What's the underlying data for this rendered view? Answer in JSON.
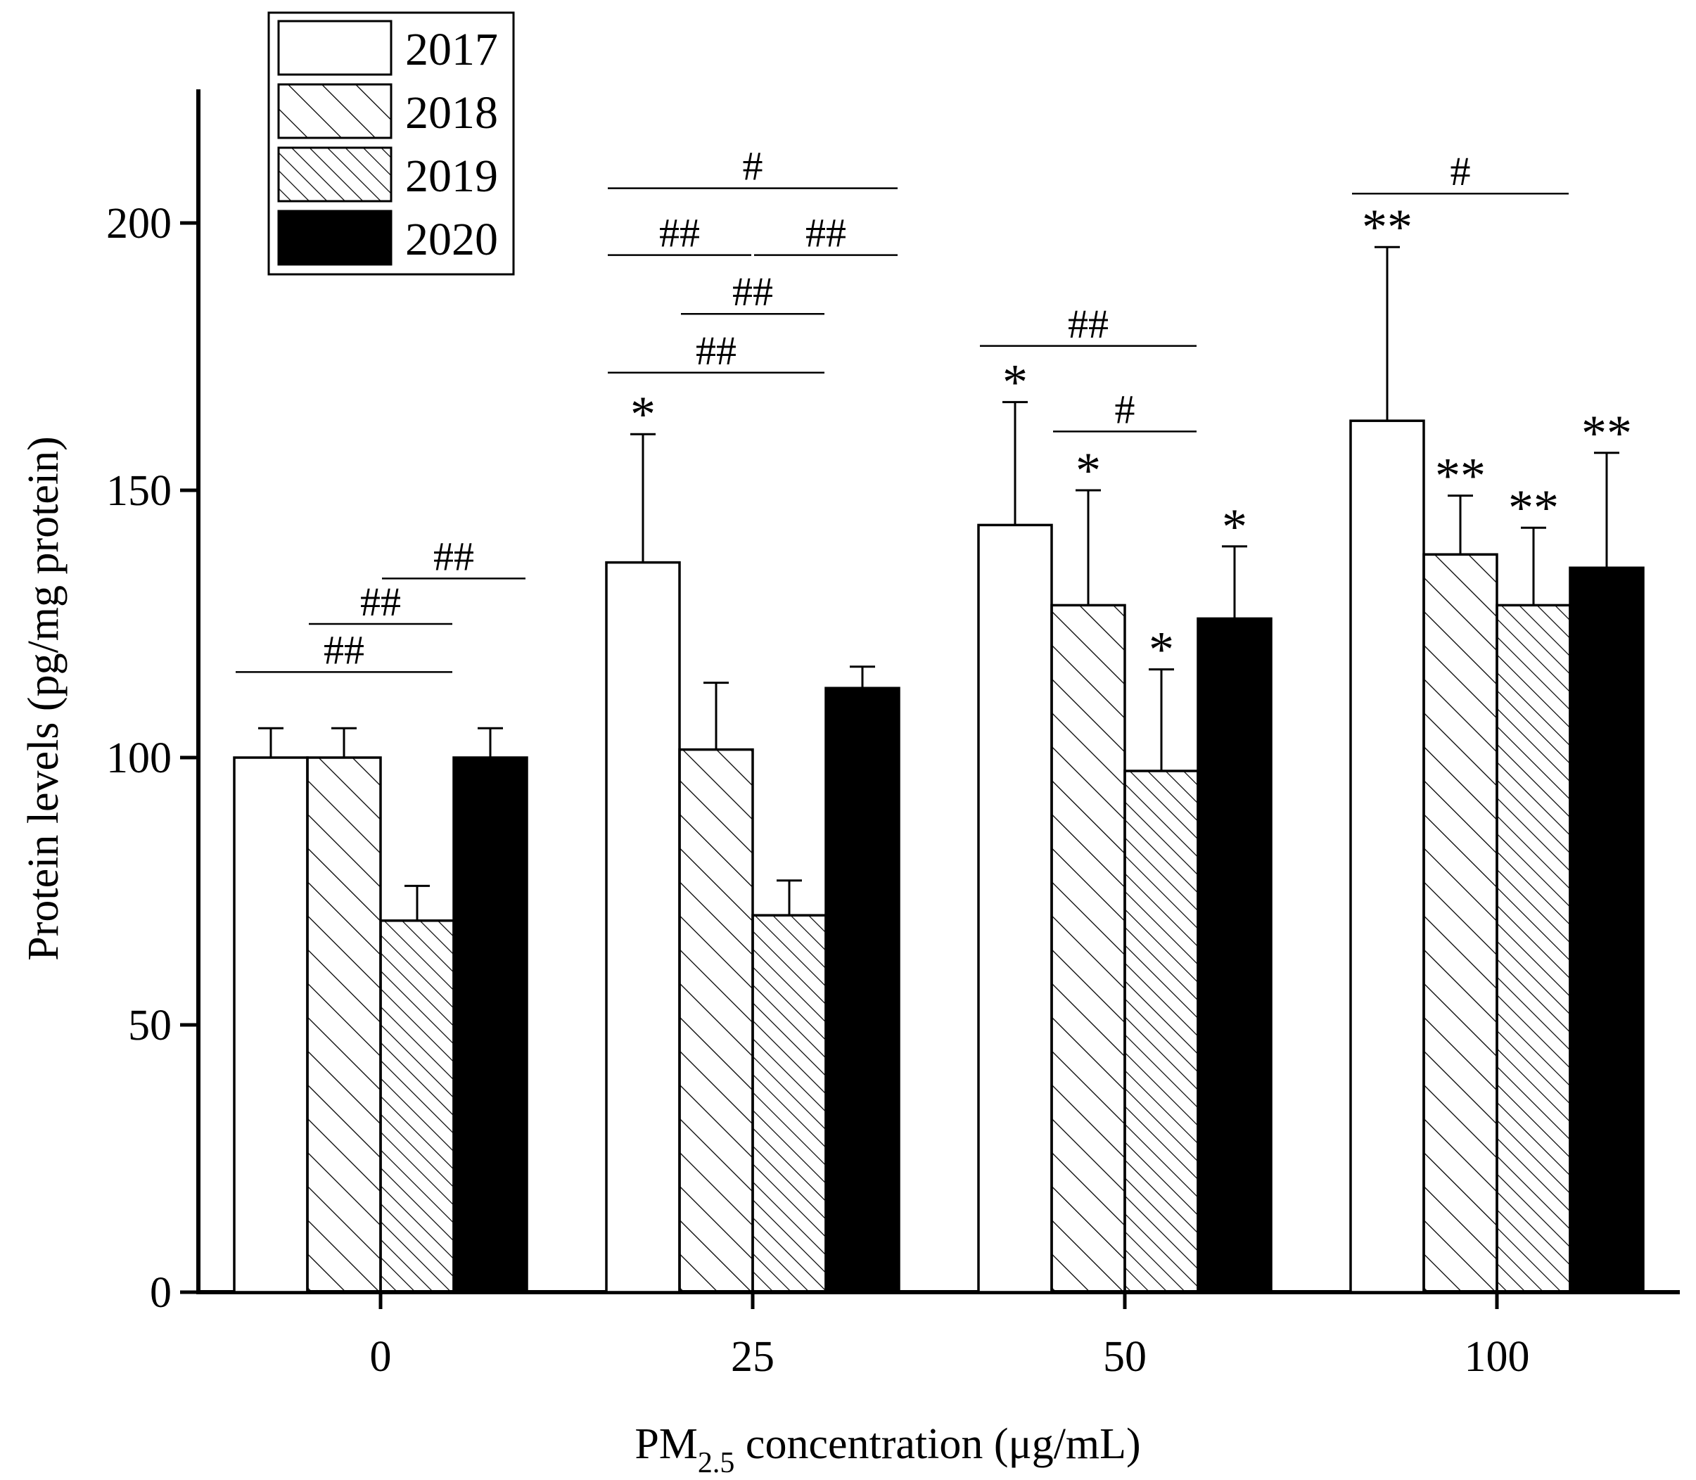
{
  "chart_data": {
    "type": "bar",
    "xlabel": {
      "main": "PM",
      "sub": "2.5",
      "rest": " concentration (μg/mL)"
    },
    "ylabel": "Protein levels (pg/mg protein)",
    "ylim": [
      0,
      225
    ],
    "yticks": [
      0,
      50,
      100,
      150,
      200
    ],
    "grid": false,
    "legend_position": "top-left",
    "categories": [
      "0",
      "25",
      "50",
      "100"
    ],
    "series": [
      {
        "name": "2017",
        "pattern": "open",
        "values": [
          100,
          136.5,
          143.5,
          163.0
        ],
        "errors": [
          5.5,
          24.0,
          23.0,
          32.5
        ],
        "stars": [
          "",
          "*",
          "*",
          "**"
        ]
      },
      {
        "name": "2018",
        "pattern": "hatch-sparse",
        "values": [
          100,
          101.5,
          128.5,
          138.0
        ],
        "errors": [
          5.5,
          12.5,
          21.5,
          11.0
        ],
        "stars": [
          "",
          "",
          "*",
          "**"
        ]
      },
      {
        "name": "2019",
        "pattern": "hatch-dense",
        "values": [
          69.5,
          70.5,
          97.5,
          128.5
        ],
        "errors": [
          6.5,
          6.5,
          19.0,
          14.5
        ],
        "stars": [
          "",
          "",
          "*",
          "**"
        ]
      },
      {
        "name": "2020",
        "pattern": "solid",
        "values": [
          100,
          113.0,
          126.0,
          135.5
        ],
        "errors": [
          5.5,
          4.0,
          13.5,
          21.5
        ],
        "stars": [
          "",
          "",
          "*",
          "**"
        ]
      }
    ],
    "colors": {
      "axis": "#000000",
      "bar_fill": "#ffffff",
      "solid_fill": "#000000",
      "hatch": "#000000"
    },
    "significance": [
      {
        "group": 0,
        "from_series": 0,
        "to_series": 2,
        "y": 116,
        "label": "##"
      },
      {
        "group": 0,
        "from_series": 1,
        "to_series": 2,
        "y": 125,
        "label": "##"
      },
      {
        "group": 0,
        "from_series": 2,
        "to_series": 3,
        "y": 133.5,
        "label": "##"
      },
      {
        "group": 1,
        "from_series": 0,
        "to_series": 2,
        "y": 172,
        "label": "##"
      },
      {
        "group": 1,
        "from_series": 1,
        "to_series": 2,
        "y": 183,
        "label": "##"
      },
      {
        "group": 1,
        "from_series": 0,
        "to_series": 1,
        "y": 194,
        "label": "##"
      },
      {
        "group": 1,
        "from_series": 2,
        "to_series": 3,
        "y": 194,
        "label": "##"
      },
      {
        "group": 1,
        "from_series": 0,
        "to_series": 3,
        "y": 206.5,
        "label": "#"
      },
      {
        "group": 2,
        "from_series": 0,
        "to_series": 2,
        "y": 177,
        "label": "##"
      },
      {
        "group": 2,
        "from_series": 1,
        "to_series": 2,
        "y": 161,
        "label": "#"
      },
      {
        "group": 2,
        "from_series": 1,
        "to_series": 2,
        "y": 161,
        "label": "#",
        "duplicate": true
      },
      {
        "group": 3,
        "from_series": 0,
        "to_series": 2,
        "y": 205.5,
        "label": "#"
      }
    ]
  }
}
